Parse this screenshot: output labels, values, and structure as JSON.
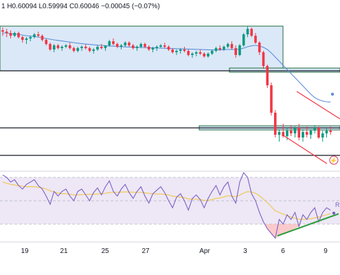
{
  "header": {
    "ohlc_text": "1  H0.60094  L0.59994  C0.60046  −0.00045 (−0.07%)"
  },
  "colors": {
    "bull": "#089981",
    "bear": "#f23645",
    "ma_line": "#5b8fd6",
    "zone_fill": "#d5e4f7",
    "zone_border": "#1e6b3a",
    "channel": "#f23645",
    "rsi_line": "#7b5fc2",
    "rsi_ma": "#f0c64a",
    "rsi_band": "#ede7f6",
    "trendline": "#2e9e3f",
    "dark_line": "#131722",
    "flag_icon": "#d1356b"
  },
  "rsi_tag": "R",
  "icons": [
    "lightning-flag-icon"
  ],
  "chart_data": {
    "type": "candlestick",
    "instrument_prices_shown": {
      "high": 0.60094,
      "low": 0.59994,
      "close": 0.60046,
      "change": -0.00045,
      "change_pct": -0.07
    },
    "x_tick_labels": [
      "19",
      "21",
      "25",
      "27",
      "Apr",
      "3",
      "6",
      "9"
    ],
    "indicators": [
      "moving-average",
      "rsi",
      "rsi-moving-average"
    ],
    "price_panel": {
      "normalized_range": [
        0,
        100
      ],
      "candles": [
        [
          90,
          92,
          86,
          89
        ],
        [
          89,
          91,
          85,
          88
        ],
        [
          88,
          90,
          84,
          86
        ],
        [
          86,
          89,
          85,
          88
        ],
        [
          88,
          89,
          84,
          85
        ],
        [
          85,
          86,
          81,
          83
        ],
        [
          83,
          85,
          80,
          84
        ],
        [
          84,
          86,
          82,
          85
        ],
        [
          85,
          88,
          84,
          87
        ],
        [
          87,
          89,
          85,
          86
        ],
        [
          86,
          87,
          82,
          83
        ],
        [
          83,
          84,
          79,
          80
        ],
        [
          80,
          81,
          75,
          76
        ],
        [
          76,
          80,
          74,
          79
        ],
        [
          79,
          80,
          76,
          77
        ],
        [
          77,
          79,
          75,
          78
        ],
        [
          78,
          80,
          77,
          79
        ],
        [
          79,
          81,
          76,
          77
        ],
        [
          77,
          78,
          74,
          75
        ],
        [
          75,
          78,
          74,
          77
        ],
        [
          77,
          79,
          75,
          78
        ],
        [
          78,
          80,
          76,
          77
        ],
        [
          77,
          78,
          74,
          75
        ],
        [
          75,
          77,
          73,
          76
        ],
        [
          76,
          79,
          75,
          78
        ],
        [
          78,
          80,
          76,
          77
        ],
        [
          77,
          79,
          75,
          79
        ],
        [
          79,
          83,
          78,
          82
        ],
        [
          82,
          84,
          79,
          80
        ],
        [
          80,
          81,
          77,
          78
        ],
        [
          78,
          80,
          76,
          79
        ],
        [
          79,
          82,
          78,
          81
        ],
        [
          81,
          82,
          78,
          79
        ],
        [
          79,
          80,
          76,
          77
        ],
        [
          77,
          79,
          75,
          78
        ],
        [
          78,
          81,
          77,
          80
        ],
        [
          80,
          81,
          77,
          78
        ],
        [
          78,
          79,
          75,
          76
        ],
        [
          76,
          78,
          74,
          77
        ],
        [
          77,
          79,
          75,
          78
        ],
        [
          78,
          80,
          77,
          79
        ],
        [
          79,
          81,
          77,
          78
        ],
        [
          78,
          79,
          75,
          76
        ],
        [
          76,
          77,
          73,
          74
        ],
        [
          74,
          76,
          72,
          75
        ],
        [
          75,
          77,
          73,
          76
        ],
        [
          76,
          78,
          74,
          75
        ],
        [
          75,
          76,
          71,
          72
        ],
        [
          72,
          74,
          70,
          73
        ],
        [
          73,
          75,
          71,
          74
        ],
        [
          74,
          76,
          72,
          73
        ],
        [
          73,
          74,
          70,
          71
        ],
        [
          71,
          74,
          70,
          73
        ],
        [
          73,
          76,
          72,
          75
        ],
        [
          75,
          78,
          74,
          77
        ],
        [
          77,
          79,
          75,
          76
        ],
        [
          76,
          79,
          75,
          78
        ],
        [
          78,
          81,
          77,
          80
        ],
        [
          80,
          82,
          76,
          77
        ],
        [
          77,
          79,
          70,
          72
        ],
        [
          72,
          80,
          71,
          79
        ],
        [
          79,
          88,
          78,
          87
        ],
        [
          87,
          93,
          85,
          91
        ],
        [
          91,
          92,
          85,
          86
        ],
        [
          86,
          88,
          80,
          81
        ],
        [
          81,
          82,
          72,
          74
        ],
        [
          74,
          75,
          62,
          64
        ],
        [
          64,
          65,
          48,
          50
        ],
        [
          50,
          52,
          28,
          30
        ],
        [
          30,
          32,
          12,
          14
        ],
        [
          14,
          18,
          9,
          16
        ],
        [
          16,
          22,
          12,
          13
        ],
        [
          13,
          19,
          10,
          17
        ],
        [
          17,
          21,
          13,
          15
        ],
        [
          15,
          20,
          12,
          19
        ],
        [
          19,
          22,
          10,
          12
        ],
        [
          12,
          18,
          9,
          16
        ],
        [
          16,
          20,
          12,
          14
        ],
        [
          14,
          18,
          11,
          17
        ],
        [
          17,
          21,
          15,
          19
        ],
        [
          19,
          20,
          11,
          12
        ],
        [
          12,
          17,
          9,
          15
        ],
        [
          15,
          19,
          12,
          17
        ],
        [
          17,
          20,
          14,
          16
        ]
      ],
      "moving_average": [
        88,
        88,
        87.5,
        87.2,
        87,
        86.5,
        86,
        85.8,
        85.5,
        85,
        84.5,
        84,
        83.5,
        83,
        82.6,
        82.2,
        81.8,
        81.4,
        81,
        80.6,
        80.3,
        80,
        79.7,
        79.4,
        79.2,
        79,
        78.8,
        78.6,
        78.4,
        78.2,
        78,
        77.9,
        77.8,
        77.7,
        77.6,
        77.5,
        77.4,
        77.3,
        77.2,
        77.1,
        77,
        76.9,
        76.8,
        76.7,
        76.6,
        76.5,
        76.4,
        76.3,
        76.2,
        76.1,
        76,
        75.9,
        75.8,
        75.7,
        75.7,
        75.8,
        75.9,
        76,
        76.1,
        76,
        76.3,
        77,
        78,
        78.7,
        79,
        78.5,
        77.6,
        76,
        73.5,
        70.5,
        67.5,
        64.5,
        61.5,
        58.5,
        55.5,
        52.5,
        49.5,
        46.5,
        43.5,
        41,
        39.5,
        38.5,
        38,
        37.8
      ]
    },
    "rsi_panel": {
      "levels": [
        70,
        50,
        30
      ],
      "rsi": [
        72,
        70,
        66,
        68,
        63,
        60,
        64,
        66,
        68,
        63,
        60,
        54,
        47,
        58,
        54,
        58,
        60,
        54,
        50,
        58,
        60,
        55,
        50,
        57,
        61,
        55,
        62,
        67,
        58,
        54,
        60,
        64,
        57,
        52,
        58,
        62,
        54,
        48,
        56,
        59,
        62,
        57,
        50,
        44,
        53,
        56,
        50,
        42,
        52,
        55,
        51,
        44,
        52,
        58,
        63,
        55,
        62,
        66,
        54,
        48,
        66,
        74,
        70,
        56,
        50,
        40,
        32,
        26,
        22,
        18,
        34,
        30,
        38,
        34,
        40,
        28,
        38,
        34,
        40,
        44,
        32,
        40,
        44,
        42
      ],
      "rsi_ma": [
        66,
        65,
        64,
        63.5,
        63,
        62.5,
        62,
        62,
        62,
        61.5,
        61,
        60,
        58.5,
        57.5,
        56.5,
        56,
        56,
        55.5,
        55,
        55,
        55.2,
        55.4,
        55.5,
        55.6,
        55.8,
        56,
        56.4,
        57,
        57.2,
        57.2,
        57.4,
        57.6,
        57.5,
        57.3,
        57.2,
        57.2,
        56.8,
        56.3,
        56,
        55.8,
        55.8,
        55.5,
        55,
        54,
        53.5,
        53.2,
        52.6,
        51.6,
        51.4,
        51.4,
        51,
        50.3,
        50.4,
        51,
        52,
        52.4,
        53.2,
        54.2,
        54,
        53.4,
        54.8,
        56.6,
        57.8,
        57.4,
        56.4,
        54.2,
        51.4,
        48.4,
        45,
        41.4,
        40,
        38.6,
        37.4,
        36,
        35,
        34.2,
        34,
        34.2,
        34.6,
        35.4,
        36,
        37,
        38,
        39
      ]
    }
  }
}
